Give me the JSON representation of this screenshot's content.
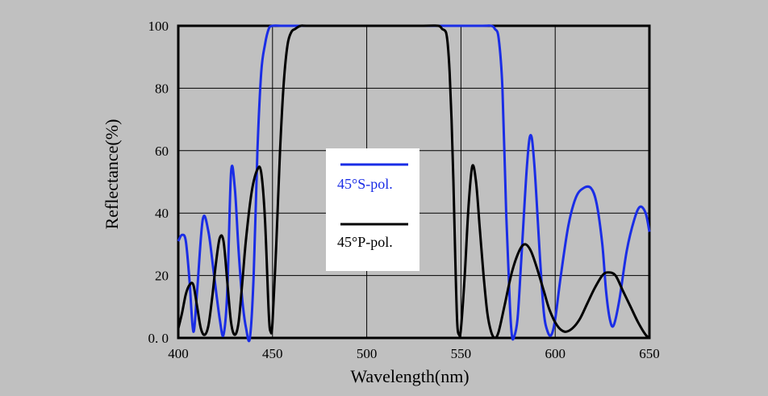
{
  "chart_data": {
    "type": "line",
    "title": "",
    "xlabel": "Wavelength(nm)",
    "ylabel": "Reflectance(%)",
    "xlim": [
      400,
      650
    ],
    "ylim": [
      0,
      100
    ],
    "x_ticks": [
      400,
      450,
      500,
      550,
      600,
      650
    ],
    "y_ticks": [
      0,
      20,
      40,
      60,
      80,
      100
    ],
    "x_tick_labels": [
      "400",
      "450",
      "500",
      "550",
      "600",
      "650"
    ],
    "y_tick_labels": [
      "0. 0",
      "20",
      "40",
      "60",
      "80",
      "100"
    ],
    "grid": true,
    "legend_position": "center",
    "series": [
      {
        "name": "45°S-pol.",
        "color": "#1a2de6",
        "points": [
          [
            400,
            31
          ],
          [
            402,
            33
          ],
          [
            404,
            31
          ],
          [
            406,
            18
          ],
          [
            408,
            2
          ],
          [
            410,
            15
          ],
          [
            413,
            38
          ],
          [
            416,
            34
          ],
          [
            419,
            20
          ],
          [
            422,
            6
          ],
          [
            424,
            1
          ],
          [
            426,
            15
          ],
          [
            428,
            53
          ],
          [
            430,
            48
          ],
          [
            432,
            28
          ],
          [
            434,
            12
          ],
          [
            436,
            3
          ],
          [
            438,
            0
          ],
          [
            440,
            20
          ],
          [
            442,
            60
          ],
          [
            444,
            85
          ],
          [
            446,
            94
          ],
          [
            448,
            99
          ],
          [
            450,
            100
          ],
          [
            455,
            100
          ],
          [
            460,
            100
          ],
          [
            470,
            100
          ],
          [
            500,
            100
          ],
          [
            530,
            100
          ],
          [
            560,
            100
          ],
          [
            566,
            100
          ],
          [
            568,
            99
          ],
          [
            570,
            96
          ],
          [
            572,
            80
          ],
          [
            574,
            40
          ],
          [
            576,
            10
          ],
          [
            577,
            1
          ],
          [
            578,
            0
          ],
          [
            580,
            6
          ],
          [
            582,
            25
          ],
          [
            585,
            55
          ],
          [
            587,
            65
          ],
          [
            589,
            55
          ],
          [
            592,
            25
          ],
          [
            594,
            8
          ],
          [
            596,
            2
          ],
          [
            598,
            1
          ],
          [
            600,
            6
          ],
          [
            603,
            20
          ],
          [
            607,
            36
          ],
          [
            611,
            45
          ],
          [
            615,
            48
          ],
          [
            619,
            48
          ],
          [
            622,
            43
          ],
          [
            625,
            30
          ],
          [
            627,
            15
          ],
          [
            629,
            6
          ],
          [
            631,
            4
          ],
          [
            634,
            12
          ],
          [
            638,
            28
          ],
          [
            642,
            38
          ],
          [
            645,
            42
          ],
          [
            648,
            40
          ],
          [
            650,
            34
          ]
        ]
      },
      {
        "name": "45°P-pol.",
        "color": "#000000",
        "points": [
          [
            400,
            3
          ],
          [
            402,
            8
          ],
          [
            404,
            14
          ],
          [
            406,
            17
          ],
          [
            408,
            17
          ],
          [
            410,
            10
          ],
          [
            412,
            3
          ],
          [
            414,
            1
          ],
          [
            416,
            4
          ],
          [
            418,
            13
          ],
          [
            420,
            24
          ],
          [
            422,
            32
          ],
          [
            424,
            31
          ],
          [
            426,
            18
          ],
          [
            428,
            5
          ],
          [
            430,
            1
          ],
          [
            432,
            5
          ],
          [
            434,
            18
          ],
          [
            436,
            32
          ],
          [
            439,
            47
          ],
          [
            442,
            54
          ],
          [
            444,
            53
          ],
          [
            446,
            38
          ],
          [
            448,
            8
          ],
          [
            449,
            2
          ],
          [
            450,
            5
          ],
          [
            452,
            30
          ],
          [
            454,
            60
          ],
          [
            456,
            82
          ],
          [
            458,
            94
          ],
          [
            460,
            98
          ],
          [
            462,
            99
          ],
          [
            465,
            100
          ],
          [
            470,
            100
          ],
          [
            500,
            100
          ],
          [
            530,
            100
          ],
          [
            538,
            100
          ],
          [
            540,
            99
          ],
          [
            542,
            98
          ],
          [
            543,
            94
          ],
          [
            544,
            85
          ],
          [
            545,
            70
          ],
          [
            546,
            50
          ],
          [
            547,
            25
          ],
          [
            548,
            5
          ],
          [
            549,
            1
          ],
          [
            550,
            3
          ],
          [
            552,
            20
          ],
          [
            554,
            42
          ],
          [
            556,
            55
          ],
          [
            558,
            50
          ],
          [
            560,
            35
          ],
          [
            562,
            20
          ],
          [
            564,
            8
          ],
          [
            566,
            2
          ],
          [
            568,
            0
          ],
          [
            570,
            2
          ],
          [
            573,
            10
          ],
          [
            577,
            21
          ],
          [
            581,
            28
          ],
          [
            584,
            30
          ],
          [
            587,
            28
          ],
          [
            590,
            23
          ],
          [
            594,
            15
          ],
          [
            597,
            9
          ],
          [
            601,
            4
          ],
          [
            605,
            2
          ],
          [
            609,
            3
          ],
          [
            613,
            6
          ],
          [
            617,
            11
          ],
          [
            621,
            16
          ],
          [
            625,
            20
          ],
          [
            628,
            21
          ],
          [
            632,
            20
          ],
          [
            636,
            15
          ],
          [
            640,
            10
          ],
          [
            644,
            5
          ],
          [
            648,
            1
          ],
          [
            650,
            0
          ]
        ]
      }
    ]
  }
}
